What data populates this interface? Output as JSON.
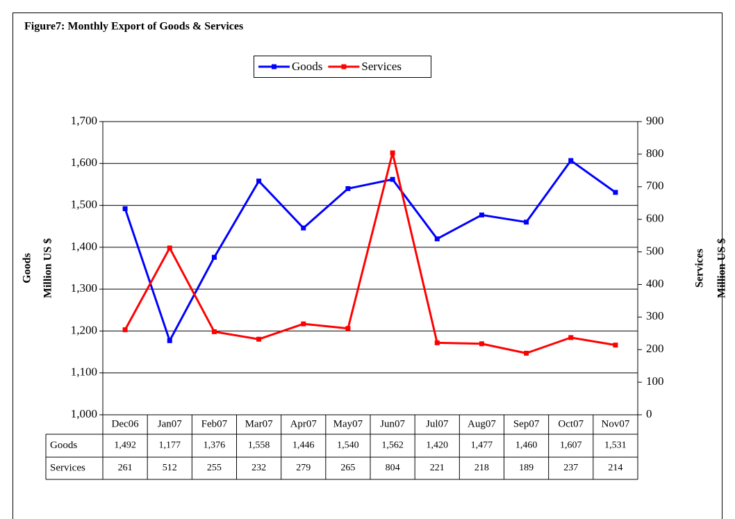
{
  "chart_data": {
    "type": "line",
    "title": "Figure7: Monthly Export of Goods & Services",
    "ylabel": [
      "Goods",
      "Million US $"
    ],
    "y2label": [
      "Services",
      "Million US $"
    ],
    "categories": [
      "Dec06",
      "Jan07",
      "Feb07",
      "Mar07",
      "Apr07",
      "May07",
      "Jun07",
      "Jul07",
      "Aug07",
      "Sep07",
      "Oct07",
      "Nov07"
    ],
    "series": [
      {
        "name": "Goods",
        "color": "#0000ff",
        "values": [
          1492,
          1177,
          1376,
          1558,
          1446,
          1540,
          1562,
          1420,
          1477,
          1460,
          1607,
          1531
        ],
        "value_labels": [
          "1,492",
          "1,177",
          "1,376",
          "1,558",
          "1,446",
          "1,540",
          "1,562",
          "1,420",
          "1,477",
          "1,460",
          "1,607",
          "1,531"
        ]
      },
      {
        "name": "Services",
        "color": "#ff0000",
        "axis": "y2",
        "values": [
          261,
          512,
          255,
          232,
          279,
          265,
          804,
          221,
          218,
          189,
          237,
          214
        ]
      }
    ],
    "ylim": [
      1000,
      1700
    ],
    "yticks": [
      {
        "value": 1000,
        "label": "1,000"
      },
      {
        "value": 1100,
        "label": "1,100"
      },
      {
        "value": 1200,
        "label": "1,200"
      },
      {
        "value": 1300,
        "label": "1,300"
      },
      {
        "value": 1400,
        "label": "1,400"
      },
      {
        "value": 1500,
        "label": "1,500"
      },
      {
        "value": 1600,
        "label": "1,600"
      },
      {
        "value": 1700,
        "label": "1,700"
      }
    ],
    "y2lim": [
      0,
      900
    ],
    "y2ticks": [
      0,
      100,
      200,
      300,
      400,
      500,
      600,
      700,
      800,
      900
    ],
    "grid": true,
    "legend": "top"
  }
}
